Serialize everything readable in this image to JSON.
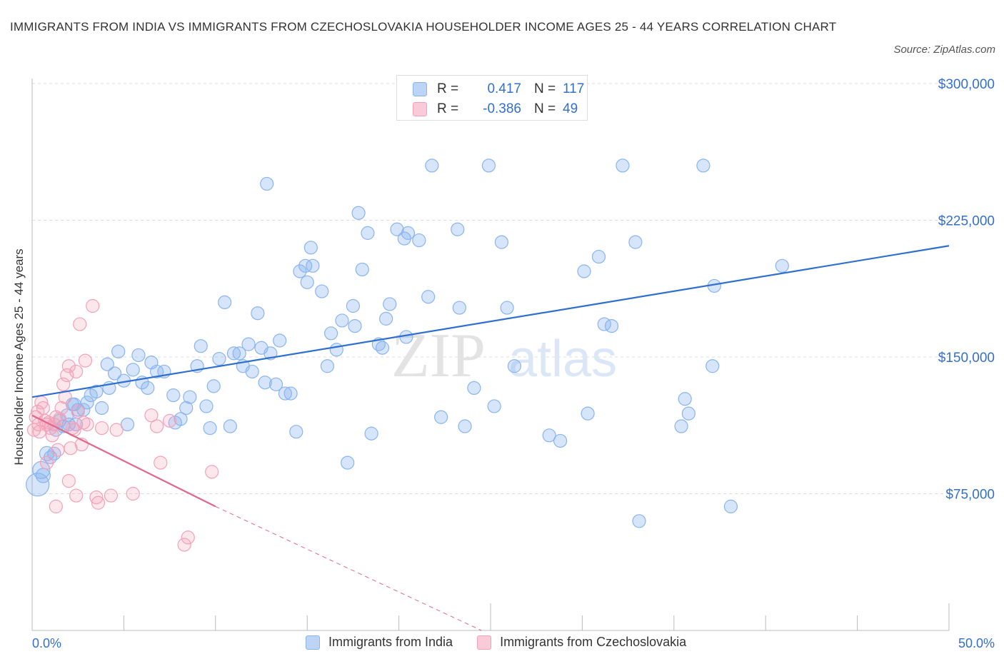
{
  "title": "IMMIGRANTS FROM INDIA VS IMMIGRANTS FROM CZECHOSLOVAKIA HOUSEHOLDER INCOME AGES 25 - 44 YEARS CORRELATION CHART",
  "source": "Source: ZipAtlas.com",
  "watermark": {
    "zip": "ZIP",
    "atlas": "atlas"
  },
  "legend": {
    "r_label": "R =",
    "n_label": "N =",
    "rows": [
      {
        "r": "0.417",
        "n": "117"
      },
      {
        "r": "-0.386",
        "n": "49"
      }
    ]
  },
  "chart_data": {
    "type": "scatter",
    "title": "IMMIGRANTS FROM INDIA VS IMMIGRANTS FROM CZECHOSLOVAKIA HOUSEHOLDER INCOME AGES 25 - 44 YEARS CORRELATION CHART",
    "xlabel": "",
    "ylabel": "Householder Income Ages 25 - 44 years",
    "xlim": [
      0,
      50
    ],
    "ylim": [
      0,
      300000
    ],
    "x_tick_labels": [
      "0.0%",
      "50.0%"
    ],
    "y_ticks": [
      75000,
      150000,
      225000,
      300000
    ],
    "y_tick_labels": [
      "$75,000",
      "$150,000",
      "$225,000",
      "$300,000"
    ],
    "grid": true,
    "legend_position": "top-center",
    "series": [
      {
        "name": "Immigrants from India",
        "color": "#8ab4ef",
        "line_color": "#2f6fd0",
        "trend": {
          "x": [
            0,
            50
          ],
          "y": [
            128000,
            211000
          ]
        },
        "points": [
          [
            0.3,
            80000,
            16
          ],
          [
            0.5,
            88000,
            12
          ],
          [
            0.6,
            85000,
            10
          ],
          [
            0.8,
            97000,
            10
          ],
          [
            1.0,
            95000,
            9
          ],
          [
            1.3,
            110000,
            9
          ],
          [
            1.5,
            115000,
            9
          ],
          [
            1.7,
            112000,
            9
          ],
          [
            1.9,
            118000,
            9
          ],
          [
            2.0,
            113000,
            9
          ],
          [
            2.3,
            124000,
            9
          ],
          [
            2.5,
            121000,
            9
          ],
          [
            2.8,
            121000,
            9
          ],
          [
            3.0,
            125000,
            9
          ],
          [
            3.2,
            129000,
            9
          ],
          [
            3.5,
            131000,
            9
          ],
          [
            3.8,
            122000,
            9
          ],
          [
            4.1,
            146000,
            9
          ],
          [
            4.2,
            133000,
            9
          ],
          [
            4.5,
            141000,
            9
          ],
          [
            4.7,
            153000,
            9
          ],
          [
            5.0,
            137000,
            9
          ],
          [
            5.2,
            113000,
            9
          ],
          [
            5.5,
            143000,
            9
          ],
          [
            5.8,
            151000,
            9
          ],
          [
            6.0,
            136000,
            9
          ],
          [
            6.5,
            147000,
            9
          ],
          [
            6.8,
            142000,
            9
          ],
          [
            7.2,
            142000,
            9
          ],
          [
            7.7,
            129000,
            9
          ],
          [
            7.8,
            114000,
            9
          ],
          [
            8.1,
            116000,
            9
          ],
          [
            8.4,
            122000,
            9
          ],
          [
            8.6,
            128000,
            9
          ],
          [
            9.0,
            145000,
            9
          ],
          [
            9.2,
            156000,
            9
          ],
          [
            9.5,
            123000,
            9
          ],
          [
            9.7,
            111000,
            9
          ],
          [
            9.9,
            134000,
            9
          ],
          [
            10.2,
            149000,
            9
          ],
          [
            10.5,
            180000,
            9
          ],
          [
            10.8,
            112000,
            9
          ],
          [
            11.0,
            152000,
            9
          ],
          [
            11.3,
            152000,
            9
          ],
          [
            11.5,
            145000,
            9
          ],
          [
            11.8,
            157000,
            9
          ],
          [
            12.0,
            142000,
            9
          ],
          [
            12.3,
            174000,
            9
          ],
          [
            12.5,
            155000,
            9
          ],
          [
            12.7,
            136000,
            9
          ],
          [
            12.8,
            245000,
            9
          ],
          [
            13.0,
            152000,
            9
          ],
          [
            13.3,
            135000,
            9
          ],
          [
            13.5,
            159000,
            9
          ],
          [
            13.8,
            130000,
            9
          ],
          [
            14.1,
            130000,
            9
          ],
          [
            14.4,
            109000,
            9
          ],
          [
            14.6,
            197000,
            9
          ],
          [
            14.9,
            200000,
            9
          ],
          [
            15.2,
            210000,
            9
          ],
          [
            15.3,
            200000,
            9
          ],
          [
            15.8,
            186000,
            9
          ],
          [
            16.1,
            145000,
            9
          ],
          [
            16.3,
            163000,
            9
          ],
          [
            16.6,
            154000,
            9
          ],
          [
            16.9,
            170000,
            9
          ],
          [
            17.2,
            92000,
            9
          ],
          [
            17.5,
            178000,
            9
          ],
          [
            17.6,
            167000,
            9
          ],
          [
            17.8,
            229000,
            9
          ],
          [
            18.0,
            198000,
            9
          ],
          [
            18.3,
            218000,
            9
          ],
          [
            18.5,
            108000,
            9
          ],
          [
            18.9,
            157000,
            9
          ],
          [
            19.1,
            155000,
            9
          ],
          [
            19.3,
            171000,
            9
          ],
          [
            19.5,
            179000,
            9
          ],
          [
            19.9,
            220000,
            9
          ],
          [
            20.3,
            215000,
            9
          ],
          [
            20.4,
            161000,
            9
          ],
          [
            20.5,
            218000,
            9
          ],
          [
            21.1,
            214000,
            9
          ],
          [
            21.6,
            183000,
            9
          ],
          [
            21.8,
            255000,
            9
          ],
          [
            22.3,
            117000,
            9
          ],
          [
            23.2,
            220000,
            9
          ],
          [
            23.3,
            177000,
            9
          ],
          [
            23.6,
            112000,
            9
          ],
          [
            24.1,
            133000,
            9
          ],
          [
            24.9,
            255000,
            9
          ],
          [
            25.2,
            123000,
            9
          ],
          [
            25.6,
            213000,
            9
          ],
          [
            25.9,
            177000,
            9
          ],
          [
            26.3,
            145000,
            9
          ],
          [
            28.2,
            107000,
            9
          ],
          [
            28.8,
            104000,
            9
          ],
          [
            30.1,
            197000,
            9
          ],
          [
            30.3,
            119000,
            9
          ],
          [
            30.9,
            205000,
            9
          ],
          [
            31.2,
            168000,
            9
          ],
          [
            31.6,
            167000,
            9
          ],
          [
            32.2,
            255000,
            9
          ],
          [
            32.9,
            213000,
            9
          ],
          [
            33.1,
            60000,
            9
          ],
          [
            35.4,
            112000,
            9
          ],
          [
            35.6,
            127000,
            9
          ],
          [
            35.8,
            119000,
            9
          ],
          [
            36.6,
            255000,
            9
          ],
          [
            37.1,
            145000,
            9
          ],
          [
            37.2,
            189000,
            9
          ],
          [
            38.1,
            68000,
            9
          ],
          [
            40.9,
            200000,
            9
          ],
          [
            2.2,
            124000,
            9
          ],
          [
            6.3,
            133000,
            9
          ],
          [
            15.0,
            191000,
            9
          ],
          [
            1.2,
            97000,
            9
          ],
          [
            2.4,
            113000,
            9
          ]
        ]
      },
      {
        "name": "Immigrants from Czechoslovakia",
        "color": "#f2a1b8",
        "line_color": "#e0678e",
        "trend": {
          "x": [
            0,
            10
          ],
          "y": [
            118000,
            68000
          ]
        },
        "trend_extension": {
          "x": [
            10,
            24.5
          ],
          "y": [
            68000,
            0
          ]
        },
        "points": [
          [
            0.1,
            110000,
            9
          ],
          [
            0.2,
            117000,
            9
          ],
          [
            0.3,
            120000,
            9
          ],
          [
            0.35,
            113000,
            9
          ],
          [
            0.4,
            109000,
            9
          ],
          [
            0.5,
            125000,
            9
          ],
          [
            0.6,
            122000,
            9
          ],
          [
            0.7,
            115000,
            9
          ],
          [
            0.8,
            113000,
            9
          ],
          [
            0.9,
            114000,
            9
          ],
          [
            1.0,
            111000,
            9
          ],
          [
            1.1,
            107000,
            9
          ],
          [
            1.2,
            113000,
            9
          ],
          [
            1.3,
            117000,
            9
          ],
          [
            1.4,
            99000,
            9
          ],
          [
            1.5,
            116000,
            9
          ],
          [
            1.6,
            122000,
            9
          ],
          [
            1.7,
            135000,
            9
          ],
          [
            1.8,
            128000,
            9
          ],
          [
            1.9,
            140000,
            9
          ],
          [
            2.0,
            145000,
            9
          ],
          [
            2.1,
            100000,
            9
          ],
          [
            2.2,
            111000,
            9
          ],
          [
            2.3,
            110000,
            9
          ],
          [
            2.4,
            142000,
            9
          ],
          [
            2.5,
            120000,
            9
          ],
          [
            2.6,
            168000,
            9
          ],
          [
            2.7,
            102000,
            9
          ],
          [
            2.8,
            114000,
            9
          ],
          [
            2.9,
            148000,
            9
          ],
          [
            3.0,
            113000,
            9
          ],
          [
            3.3,
            178000,
            9
          ],
          [
            3.5,
            73000,
            9
          ],
          [
            3.6,
            70000,
            9
          ],
          [
            3.8,
            111000,
            9
          ],
          [
            4.3,
            74000,
            9
          ],
          [
            4.6,
            110000,
            9
          ],
          [
            5.5,
            75000,
            9
          ],
          [
            6.5,
            118000,
            9
          ],
          [
            6.8,
            112000,
            9
          ],
          [
            7.0,
            92000,
            9
          ],
          [
            7.5,
            115000,
            9
          ],
          [
            8.3,
            47000,
            9
          ],
          [
            8.5,
            51000,
            9
          ],
          [
            9.8,
            87000,
            9
          ],
          [
            1.3,
            68000,
            9
          ],
          [
            2.0,
            82000,
            9
          ],
          [
            2.4,
            74000,
            9
          ],
          [
            0.8,
            92000,
            9
          ]
        ]
      }
    ]
  }
}
